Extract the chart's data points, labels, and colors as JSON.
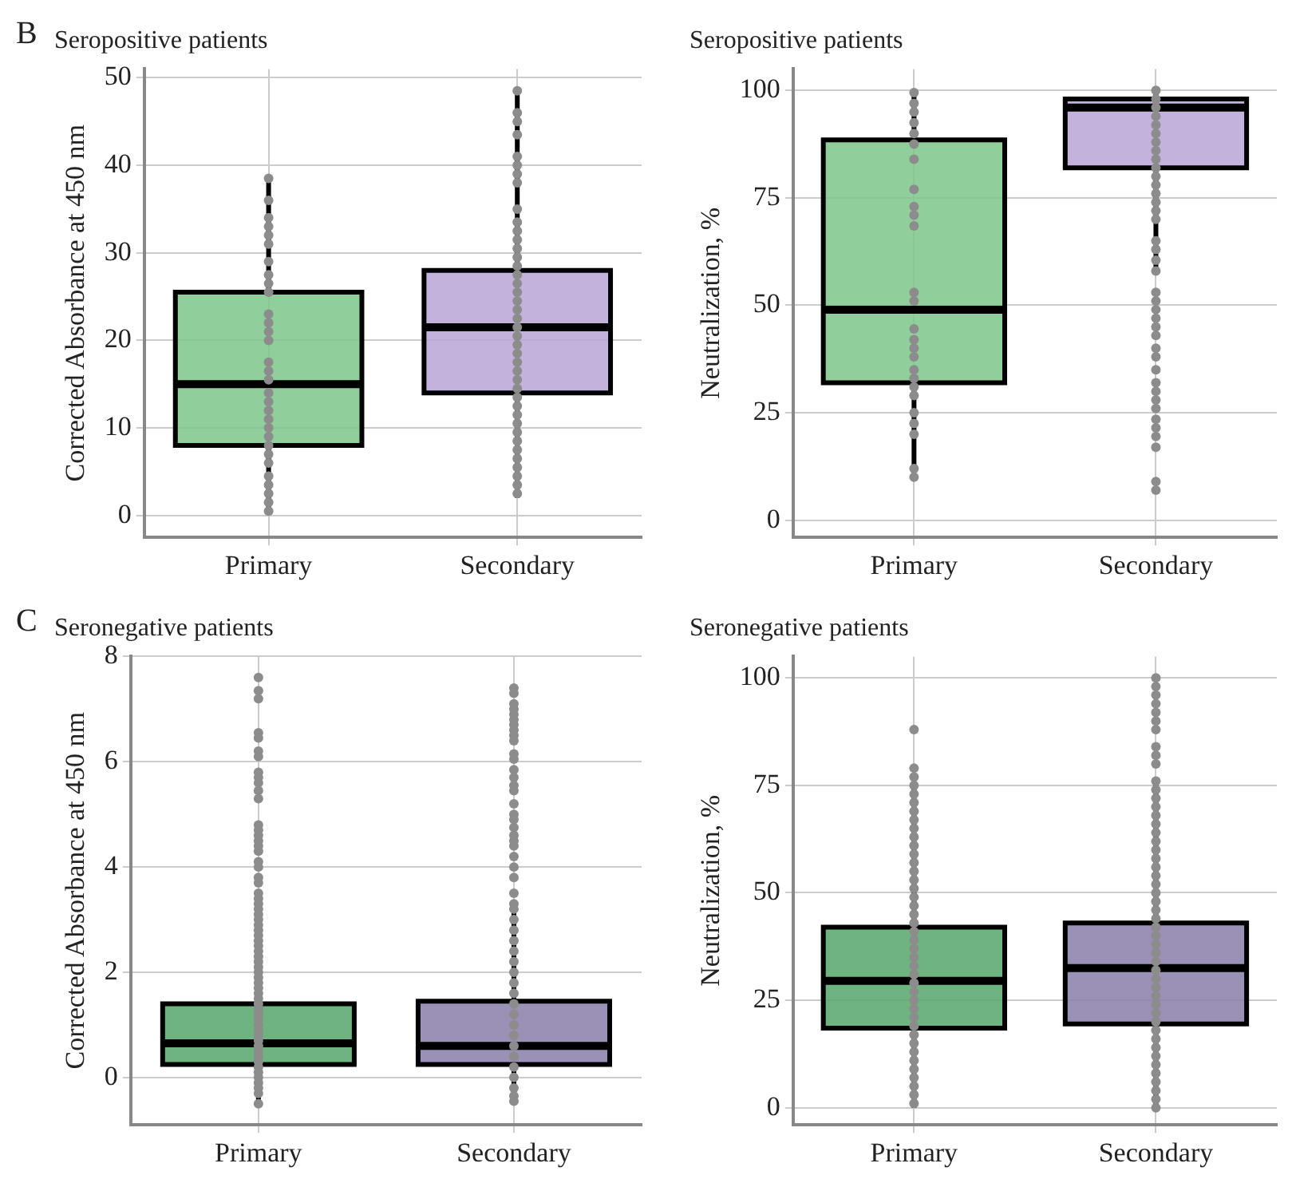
{
  "chart_data": [
    {
      "type": "box",
      "title": "Seropositive patients",
      "ylabel": "Corrected Absorbance at 450 nm",
      "annotations": [
        "B"
      ],
      "categories": [
        "Primary",
        "Secondary"
      ],
      "colors": [
        "#7cc68a",
        "#b9a6d6"
      ],
      "grid": true,
      "ylim": [
        -2.5,
        51
      ],
      "yticks": [
        0,
        10,
        20,
        30,
        40,
        50
      ],
      "boxes": [
        {
          "low": 0.3,
          "q1": 8,
          "median": 15,
          "q3": 25.5,
          "high": 38.5
        },
        {
          "low": 2,
          "q1": 14,
          "median": 21.5,
          "q3": 28,
          "high": 48.5
        }
      ],
      "series": [
        {
          "type": "scatter",
          "color": "#8c8c8c",
          "x": [
            "Primary",
            "Primary",
            "Primary",
            "Primary",
            "Primary",
            "Primary",
            "Primary",
            "Primary",
            "Primary",
            "Primary",
            "Primary",
            "Primary",
            "Primary",
            "Primary",
            "Primary",
            "Primary",
            "Primary",
            "Primary",
            "Primary",
            "Primary",
            "Primary",
            "Primary",
            "Primary",
            "Primary",
            "Primary",
            "Primary",
            "Primary",
            "Primary",
            "Primary",
            "Primary",
            "Primary"
          ],
          "values": [
            38.5,
            36,
            34,
            33,
            32,
            31,
            29,
            27.5,
            26.5,
            25.5,
            23,
            22,
            21,
            20,
            17.5,
            16.5,
            15.5,
            14,
            13,
            12,
            11,
            10,
            9,
            8,
            7,
            6,
            4.5,
            3.5,
            2.5,
            1.5,
            0.5
          ]
        },
        {
          "type": "scatter",
          "color": "#8c8c8c",
          "x": [
            "Secondary",
            "Secondary",
            "Secondary",
            "Secondary",
            "Secondary",
            "Secondary",
            "Secondary",
            "Secondary",
            "Secondary",
            "Secondary",
            "Secondary",
            "Secondary",
            "Secondary",
            "Secondary",
            "Secondary",
            "Secondary",
            "Secondary",
            "Secondary",
            "Secondary",
            "Secondary",
            "Secondary",
            "Secondary",
            "Secondary",
            "Secondary",
            "Secondary",
            "Secondary",
            "Secondary",
            "Secondary",
            "Secondary",
            "Secondary",
            "Secondary",
            "Secondary",
            "Secondary",
            "Secondary",
            "Secondary",
            "Secondary",
            "Secondary",
            "Secondary",
            "Secondary",
            "Secondary",
            "Secondary"
          ],
          "values": [
            48.5,
            46,
            45,
            43.5,
            41,
            40,
            39,
            38,
            35,
            33.5,
            32.5,
            31.5,
            30.5,
            29.5,
            28.5,
            27.5,
            26.5,
            25.5,
            24.5,
            23.5,
            22.5,
            21.5,
            20.5,
            19.5,
            18.5,
            17.5,
            16.5,
            15.5,
            14.5,
            13.5,
            12.5,
            11.5,
            10.5,
            9.5,
            8.5,
            7.5,
            6.5,
            5.5,
            4.5,
            3.5,
            2.5
          ]
        }
      ]
    },
    {
      "type": "box",
      "title": "Seropositive patients",
      "ylabel": "Neutralization, %",
      "categories": [
        "Primary",
        "Secondary"
      ],
      "colors": [
        "#7cc68a",
        "#b9a6d6"
      ],
      "grid": true,
      "ylim": [
        -4,
        105
      ],
      "yticks": [
        0,
        25,
        50,
        75,
        100
      ],
      "boxes": [
        {
          "low": 11,
          "q1": 32,
          "median": 49,
          "q3": 88.5,
          "high": 99
        },
        {
          "low": 58,
          "q1": 82,
          "median": 96,
          "q3": 98,
          "high": 100
        }
      ],
      "series": [
        {
          "type": "scatter",
          "color": "#8c8c8c",
          "x": [
            "Primary",
            "Primary",
            "Primary",
            "Primary",
            "Primary",
            "Primary",
            "Primary",
            "Primary",
            "Primary",
            "Primary",
            "Primary",
            "Primary",
            "Primary",
            "Primary",
            "Primary",
            "Primary",
            "Primary",
            "Primary",
            "Primary",
            "Primary",
            "Primary",
            "Primary",
            "Primary",
            "Primary",
            "Primary",
            "Primary"
          ],
          "values": [
            99.5,
            97,
            95,
            92.5,
            90,
            87.5,
            84,
            77,
            73,
            71,
            68.5,
            53,
            51,
            44.5,
            42,
            40,
            38,
            35,
            33,
            31,
            29,
            25,
            22.5,
            20,
            12,
            10
          ]
        },
        {
          "type": "scatter",
          "color": "#8c8c8c",
          "x": [
            "Secondary",
            "Secondary",
            "Secondary",
            "Secondary",
            "Secondary",
            "Secondary",
            "Secondary",
            "Secondary",
            "Secondary",
            "Secondary",
            "Secondary",
            "Secondary",
            "Secondary",
            "Secondary",
            "Secondary",
            "Secondary",
            "Secondary",
            "Secondary",
            "Secondary",
            "Secondary",
            "Secondary",
            "Secondary",
            "Secondary",
            "Secondary",
            "Secondary",
            "Secondary",
            "Secondary",
            "Secondary",
            "Secondary",
            "Secondary",
            "Secondary",
            "Secondary",
            "Secondary",
            "Secondary",
            "Secondary",
            "Secondary",
            "Secondary",
            "Secondary",
            "Secondary"
          ],
          "values": [
            100,
            98,
            96,
            94,
            92,
            90,
            88,
            86,
            84,
            82,
            80,
            78,
            76,
            74,
            72,
            70,
            65,
            63,
            60.5,
            58,
            53,
            51,
            49,
            47,
            45,
            43,
            40,
            38,
            35,
            32,
            30,
            28,
            26,
            23.5,
            21.5,
            19.5,
            17,
            9,
            7
          ]
        }
      ]
    },
    {
      "type": "box",
      "title": "Seronegative patients",
      "ylabel": "Corrected Absorbance at 450 nm",
      "annotations": [
        "C"
      ],
      "categories": [
        "Primary",
        "Secondary"
      ],
      "colors": [
        "#55a66a",
        "#8a7ca8"
      ],
      "grid": true,
      "ylim": [
        -0.9,
        8
      ],
      "yticks": [
        0,
        2,
        4,
        6,
        8
      ],
      "boxes": [
        {
          "low": -0.5,
          "q1": 0.25,
          "median": 0.65,
          "q3": 1.4,
          "high": 3.1
        },
        {
          "low": -0.45,
          "q1": 0.25,
          "median": 0.6,
          "q3": 1.45,
          "high": 3.25
        }
      ],
      "series": [
        {
          "type": "scatter",
          "color": "#8c8c8c",
          "x": [
            "Primary",
            "Primary",
            "Primary",
            "Primary",
            "Primary",
            "Primary",
            "Primary",
            "Primary",
            "Primary",
            "Primary",
            "Primary",
            "Primary",
            "Primary",
            "Primary",
            "Primary",
            "Primary",
            "Primary",
            "Primary",
            "Primary",
            "Primary",
            "Primary",
            "Primary",
            "Primary",
            "Primary",
            "Primary",
            "Primary",
            "Primary",
            "Primary",
            "Primary",
            "Primary",
            "Primary",
            "Primary",
            "Primary",
            "Primary",
            "Primary",
            "Primary",
            "Primary",
            "Primary",
            "Primary",
            "Primary",
            "Primary",
            "Primary",
            "Primary",
            "Primary",
            "Primary",
            "Primary",
            "Primary",
            "Primary",
            "Primary",
            "Primary",
            "Primary",
            "Primary",
            "Primary",
            "Primary",
            "Primary",
            "Primary",
            "Primary",
            "Primary",
            "Primary",
            "Primary",
            "Primary",
            "Primary"
          ],
          "values": [
            7.6,
            7.35,
            7.2,
            6.55,
            6.45,
            6.2,
            6.1,
            5.8,
            5.7,
            5.6,
            5.45,
            5.3,
            4.8,
            4.7,
            4.6,
            4.5,
            4.4,
            4.3,
            4.1,
            4,
            3.8,
            3.7,
            3.5,
            3.4,
            3.3,
            3.2,
            3.1,
            3,
            2.9,
            2.8,
            2.7,
            2.6,
            2.5,
            2.4,
            2.3,
            2.2,
            2.1,
            2,
            1.9,
            1.8,
            1.7,
            1.6,
            1.5,
            1.4,
            1.3,
            1.2,
            1.1,
            1,
            0.9,
            0.8,
            0.7,
            0.6,
            0.5,
            0.4,
            0.3,
            0.2,
            0.1,
            0,
            -0.1,
            -0.2,
            -0.3,
            -0.5
          ]
        },
        {
          "type": "scatter",
          "color": "#8c8c8c",
          "x": [
            "Secondary",
            "Secondary",
            "Secondary",
            "Secondary",
            "Secondary",
            "Secondary",
            "Secondary",
            "Secondary",
            "Secondary",
            "Secondary",
            "Secondary",
            "Secondary",
            "Secondary",
            "Secondary",
            "Secondary",
            "Secondary",
            "Secondary",
            "Secondary",
            "Secondary",
            "Secondary",
            "Secondary",
            "Secondary",
            "Secondary",
            "Secondary",
            "Secondary",
            "Secondary",
            "Secondary",
            "Secondary",
            "Secondary",
            "Secondary",
            "Secondary",
            "Secondary",
            "Secondary",
            "Secondary",
            "Secondary",
            "Secondary",
            "Secondary",
            "Secondary",
            "Secondary",
            "Secondary",
            "Secondary",
            "Secondary",
            "Secondary",
            "Secondary",
            "Secondary",
            "Secondary",
            "Secondary",
            "Secondary"
          ],
          "values": [
            7.4,
            7.3,
            7.1,
            7,
            6.9,
            6.8,
            6.7,
            6.6,
            6.5,
            6.4,
            6.15,
            6.05,
            5.85,
            5.7,
            5.55,
            5.45,
            5.2,
            5,
            4.9,
            4.75,
            4.6,
            4.5,
            4.4,
            4.2,
            4,
            3.8,
            3.5,
            3.3,
            3.2,
            3,
            2.8,
            2.6,
            2.4,
            2.2,
            2,
            1.8,
            1.6,
            1.4,
            1.2,
            1,
            0.8,
            0.6,
            0.4,
            0.2,
            0,
            -0.2,
            -0.35,
            -0.45
          ]
        }
      ]
    },
    {
      "type": "box",
      "title": "Seronegative patients",
      "ylabel": "Neutralization, %",
      "categories": [
        "Primary",
        "Secondary"
      ],
      "colors": [
        "#55a66a",
        "#8a7ca8"
      ],
      "grid": true,
      "ylim": [
        -4,
        105
      ],
      "yticks": [
        0,
        25,
        50,
        75,
        100
      ],
      "boxes": [
        {
          "low": 0,
          "q1": 18.5,
          "median": 29.5,
          "q3": 42,
          "high": 76
        },
        {
          "low": 0,
          "q1": 19.5,
          "median": 32.5,
          "q3": 43,
          "high": 75.5
        }
      ],
      "series": [
        {
          "type": "scatter",
          "color": "#8c8c8c",
          "x": [
            "Primary",
            "Primary",
            "Primary",
            "Primary",
            "Primary",
            "Primary",
            "Primary",
            "Primary",
            "Primary",
            "Primary",
            "Primary",
            "Primary",
            "Primary",
            "Primary",
            "Primary",
            "Primary",
            "Primary",
            "Primary",
            "Primary",
            "Primary",
            "Primary",
            "Primary",
            "Primary",
            "Primary",
            "Primary",
            "Primary",
            "Primary",
            "Primary",
            "Primary",
            "Primary",
            "Primary",
            "Primary",
            "Primary",
            "Primary",
            "Primary",
            "Primary",
            "Primary",
            "Primary",
            "Primary",
            "Primary",
            "Primary"
          ],
          "values": [
            88,
            79,
            77,
            75,
            73,
            71,
            69,
            67,
            65,
            63,
            61,
            59,
            57,
            55,
            53,
            51,
            49,
            47,
            45,
            43,
            41,
            39,
            37,
            35,
            33,
            31,
            29,
            27,
            25,
            23,
            21,
            19,
            17,
            15,
            13,
            11,
            9,
            7,
            5,
            3,
            1
          ]
        },
        {
          "type": "scatter",
          "color": "#8c8c8c",
          "x": [
            "Secondary",
            "Secondary",
            "Secondary",
            "Secondary",
            "Secondary",
            "Secondary",
            "Secondary",
            "Secondary",
            "Secondary",
            "Secondary",
            "Secondary",
            "Secondary",
            "Secondary",
            "Secondary",
            "Secondary",
            "Secondary",
            "Secondary",
            "Secondary",
            "Secondary",
            "Secondary",
            "Secondary",
            "Secondary",
            "Secondary",
            "Secondary",
            "Secondary",
            "Secondary",
            "Secondary",
            "Secondary",
            "Secondary",
            "Secondary",
            "Secondary",
            "Secondary",
            "Secondary",
            "Secondary",
            "Secondary",
            "Secondary",
            "Secondary",
            "Secondary",
            "Secondary",
            "Secondary",
            "Secondary",
            "Secondary",
            "Secondary",
            "Secondary",
            "Secondary",
            "Secondary",
            "Secondary",
            "Secondary",
            "Secondary"
          ],
          "values": [
            100,
            98,
            96,
            94,
            92,
            90,
            88,
            84,
            82,
            80,
            76,
            74,
            72,
            70,
            68,
            66,
            64,
            62,
            60,
            58,
            56,
            54,
            52,
            50,
            48,
            46,
            44,
            42,
            40,
            38,
            36,
            34,
            32,
            30,
            28,
            26,
            24,
            22,
            20,
            18,
            16,
            14,
            12,
            10,
            8,
            6,
            4,
            2,
            0
          ]
        }
      ]
    }
  ]
}
